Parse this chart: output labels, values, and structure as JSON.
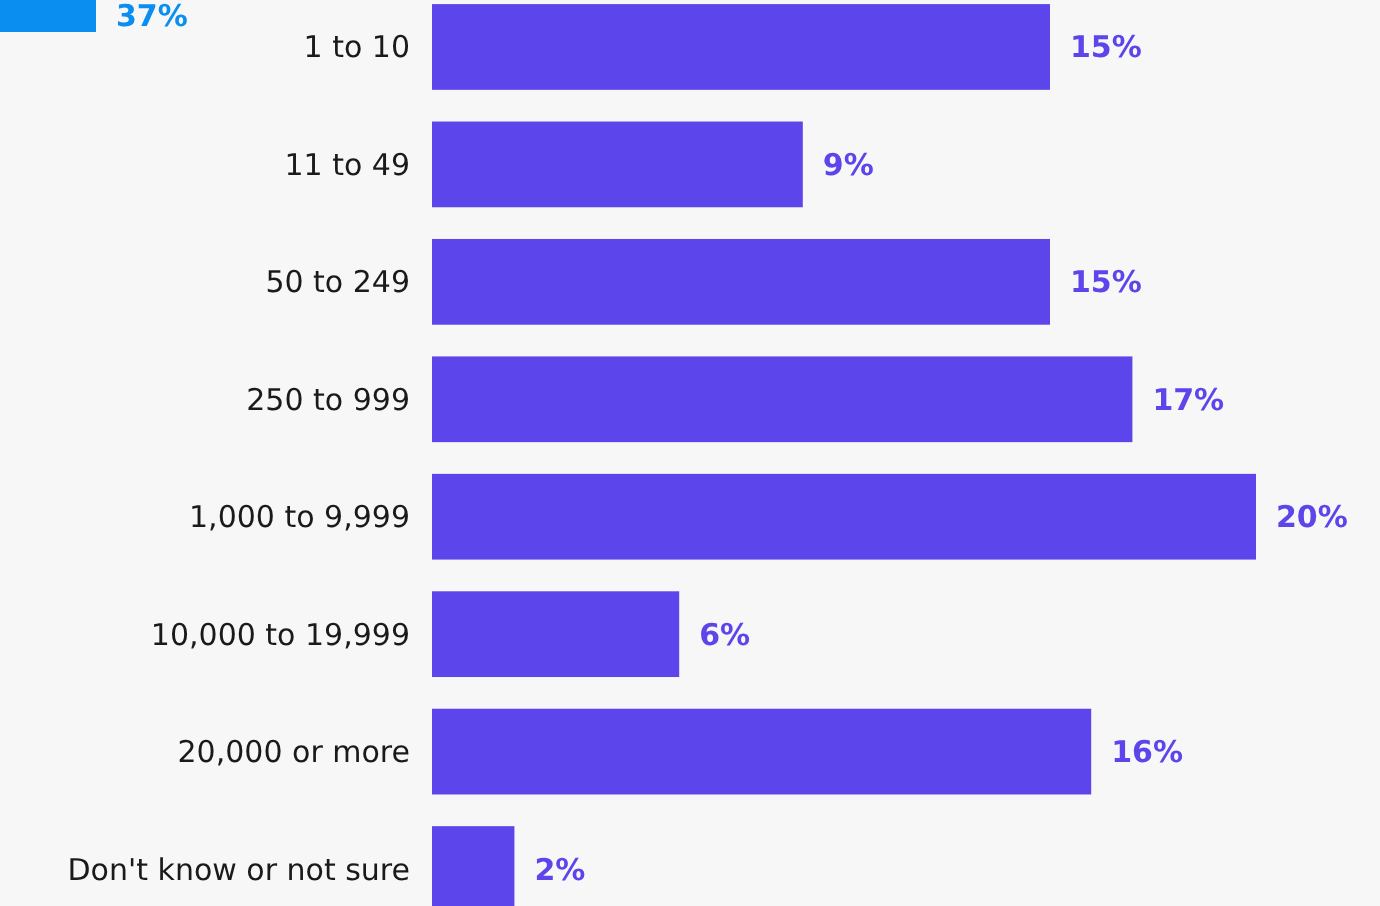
{
  "chart_data": {
    "type": "bar",
    "orientation": "horizontal",
    "categories": [
      "1 to 10",
      "11 to 49",
      "50 to 249",
      "250 to 999",
      "1,000 to 9,999",
      "10,000 to 19,999",
      "20,000 or more",
      "Don't know or not sure"
    ],
    "values": [
      15,
      9,
      15,
      17,
      20,
      6,
      16,
      2
    ],
    "color": "#5b45eb",
    "value_labels": [
      "15%",
      "9%",
      "15%",
      "17%",
      "20%",
      "6%",
      "16%",
      "2%"
    ],
    "annotations": [
      "37%"
    ]
  }
}
